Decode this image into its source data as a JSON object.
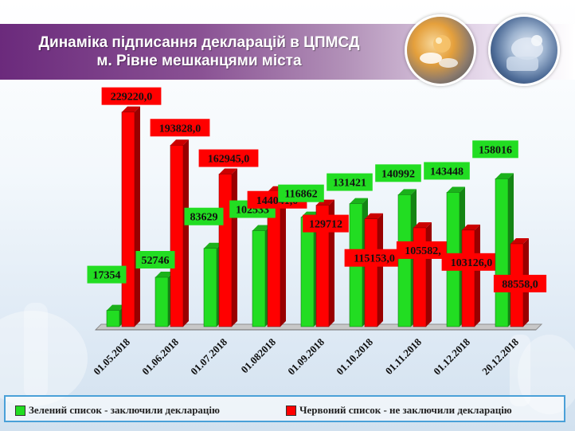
{
  "title": {
    "line1": "Динаміка підписання декларацій в ЦПМСД",
    "line2": "м. Рівне мешканцями міста"
  },
  "colors": {
    "green": "#22dd22",
    "red": "#ff0000",
    "accent": "#6b2a7c"
  },
  "chart_data": {
    "type": "bar",
    "categories": [
      "01.05.2018",
      "01.06.2018",
      "01.07.2018",
      "01.082018",
      "01.09.2018",
      "01.10.2018",
      "01.11.2018",
      "01.12.2018",
      "20.12.2018"
    ],
    "series": [
      {
        "name": "Зелений список - заключили декларацію",
        "color": "#22dd22",
        "values": [
          17354,
          52746,
          83629,
          102533,
          116862,
          131421,
          140992,
          143448,
          158016
        ],
        "labels": [
          "17354",
          "52746",
          "83629",
          "102533",
          "116862",
          "131421",
          "140992",
          "143448",
          "158016"
        ]
      },
      {
        "name": "Червоний список - не заключили декларацію",
        "color": "#ff0000",
        "values": [
          229220.0,
          193828.0,
          162945.0,
          144041.0,
          129712,
          115153.0,
          105582,
          103126,
          88558.0
        ],
        "labels": [
          "229220,0",
          "193828,0",
          "162945,0",
          "144041,0",
          "129712",
          "115153,0",
          "105582,",
          "103126,0",
          "88558,0"
        ]
      }
    ],
    "ylim": [
      0,
      240000
    ],
    "legend_position": "bottom"
  },
  "legend": {
    "green_label": "Зелений список - заключили декларацію",
    "red_label": "Червоний список - не заключили декларацію"
  }
}
